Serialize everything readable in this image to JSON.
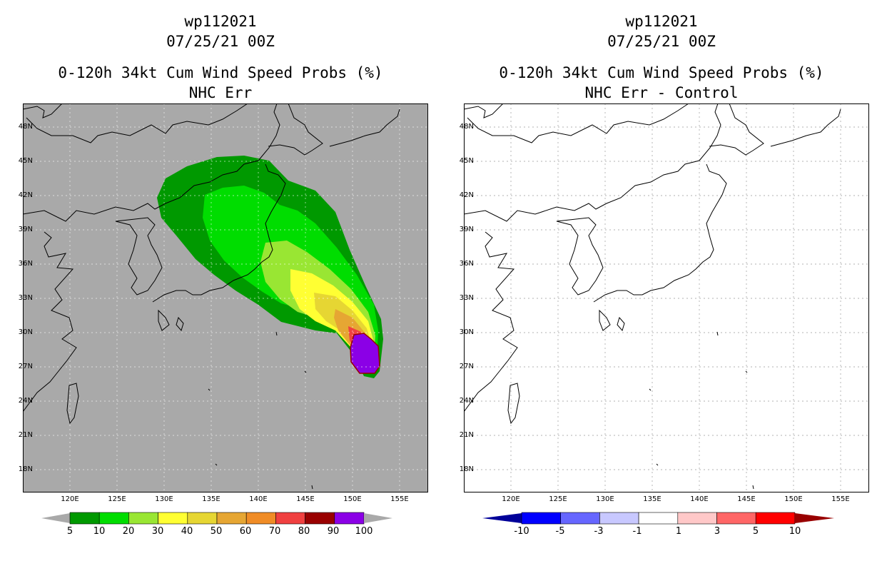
{
  "left": {
    "title_line1": "wp112021",
    "title_line2": "07/25/21 00Z",
    "title_line3": "0-120h 34kt Cum Wind Speed Probs (%)",
    "title_line4": "NHC Err",
    "background_color": "#a9a9a9",
    "colorbar": {
      "colors": [
        "#009900",
        "#00dd00",
        "#99e633",
        "#ffff33",
        "#e6d633",
        "#e6a633",
        "#f08c26",
        "#f04040",
        "#990000",
        "#8b00e6"
      ],
      "labels": [
        "5",
        "10",
        "20",
        "30",
        "40",
        "50",
        "60",
        "70",
        "80",
        "90",
        "100"
      ],
      "extend_color": "#a9a9a9"
    }
  },
  "right": {
    "title_line1": "wp112021",
    "title_line2": "07/25/21 00Z",
    "title_line3": "0-120h 34kt Cum Wind Speed Probs (%)",
    "title_line4": "NHC Err - Control",
    "background_color": "#ffffff",
    "colorbar": {
      "colors": [
        "#0000ff",
        "#6666ff",
        "#c8c8ff",
        "#ffffff",
        "#ffc8c8",
        "#ff6666",
        "#ff0000"
      ],
      "labels": [
        "-10",
        "-5",
        "-3",
        "-1",
        "1",
        "3",
        "5",
        "10"
      ],
      "extend_low": "#000099",
      "extend_high": "#990000"
    }
  },
  "axes": {
    "lat_labels": [
      "48N",
      "45N",
      "42N",
      "39N",
      "36N",
      "33N",
      "30N",
      "27N",
      "24N",
      "21N",
      "18N"
    ],
    "lon_labels": [
      "120E",
      "125E",
      "130E",
      "135E",
      "140E",
      "145E",
      "150E",
      "155E"
    ]
  }
}
